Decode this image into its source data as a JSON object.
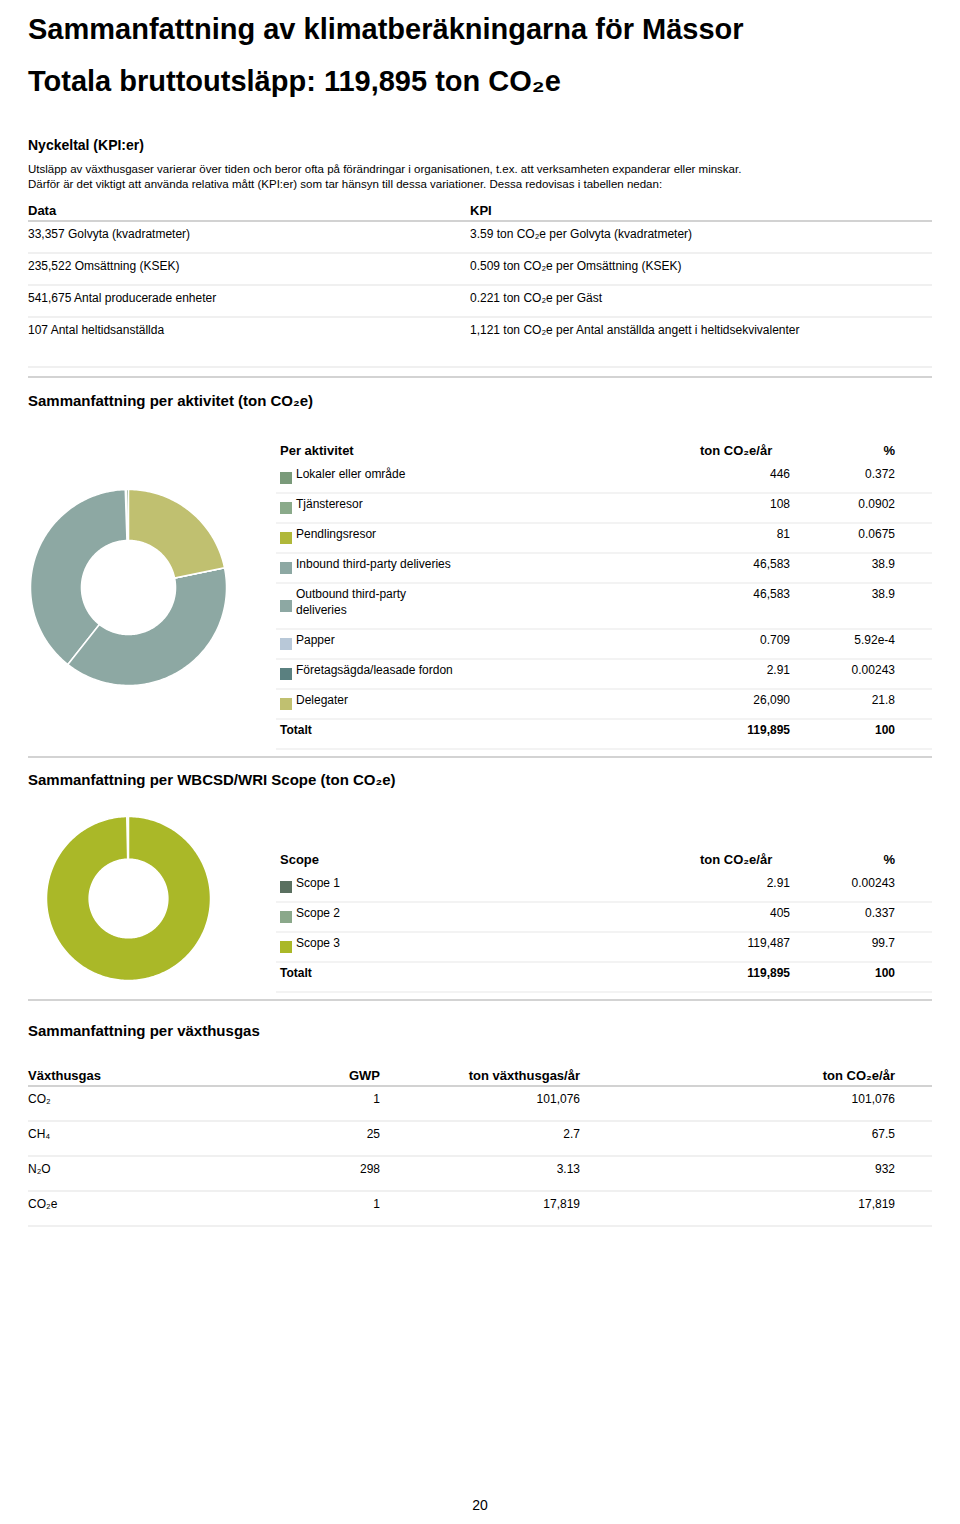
{
  "title": "Sammanfattning av klimatberäkningarna för Mässor",
  "subtitle": "Totala bruttoutsläpp: 119,895 ton CO₂e",
  "page_number": "20",
  "kpi_table": {
    "title": "Nyckeltal (KPI:er)",
    "text": [
      "Utsläpp av växthusgaser varierar över tiden och beror ofta på förändringar i organisationen, t.ex. att verksamheten expanderar eller minskar.",
      "Därför är det viktigt att använda relativa mått (KPI:er) som tar hänsyn till dessa variationer. Dessa redovisas i tabellen nedan:"
    ],
    "columns": [
      "Data",
      "KPI"
    ],
    "rows": [
      [
        "33,357 Golvyta (kvadratmeter)",
        "3.59 ton CO₂e per Golvyta (kvadratmeter)"
      ],
      [
        "235,522 Omsättning (KSEK)",
        "0.509 ton CO₂e per Omsättning (KSEK)"
      ],
      [
        "541,675 Antal producerade enheter",
        "0.221 ton CO₂e per Gäst"
      ],
      [
        "107 Antal heltidsanställda",
        "1,121 ton CO₂e per Antal anställda angett i heltidsekvivalenter"
      ]
    ]
  },
  "chart_data": [
    {
      "type": "pie",
      "title": "Sammanfattning per aktivitet (ton CO₂e)",
      "columns": [
        "Per aktivitet",
        "ton CO₂e/år",
        "%"
      ],
      "categories": [
        "Lokaler eller område",
        "Tjänsteresor",
        "Pendlingsresor",
        "Inbound third-party deliveries",
        "Outbound third-party\ndeliveries",
        "Papper",
        "Företagsägda/leasade fordon",
        "Delegater"
      ],
      "values": [
        446,
        108,
        81,
        46583,
        46583,
        0.709,
        2.91,
        26090
      ],
      "value_labels": [
        "446",
        "108",
        "81",
        "46,583",
        "46,583",
        "0.709",
        "2.91",
        "26,090"
      ],
      "share_labels": [
        "0.372",
        "0.0902",
        "0.0675",
        "38.9",
        "38.9",
        "5.92e-4",
        "0.00243",
        "21.8"
      ],
      "colors": [
        "#7a9a7a",
        "#8aaa8a",
        "#b0b83a",
        "#8da8a3",
        "#8da8a3",
        "#b8c8d8",
        "#5a8080",
        "#c0c070"
      ],
      "total": {
        "label": "Totalt",
        "value_label": "119,895",
        "share_label": "100"
      }
    },
    {
      "type": "pie",
      "title": "Sammanfattning per WBCSD/WRI Scope (ton CO₂e)",
      "columns": [
        "Scope",
        "ton CO₂e/år",
        "%"
      ],
      "categories": [
        "Scope 1",
        "Scope 2",
        "Scope 3"
      ],
      "values": [
        2.91,
        405,
        119487
      ],
      "value_labels": [
        "2.91",
        "405",
        "119,487"
      ],
      "share_labels": [
        "0.00243",
        "0.337",
        "99.7"
      ],
      "colors": [
        "#5a7060",
        "#8aa88a",
        "#aab828"
      ],
      "total": {
        "label": "Totalt",
        "value_label": "119,895",
        "share_label": "100"
      }
    }
  ],
  "gas_table": {
    "title": "Sammanfattning per växthusgas",
    "columns": [
      "Växthusgas",
      "GWP",
      "ton växthusgas/år",
      "ton CO₂e/år"
    ],
    "rows": [
      [
        "CO₂",
        "1",
        "101,076",
        "101,076"
      ],
      [
        "CH₄",
        "25",
        "2.7",
        "67.5"
      ],
      [
        "N₂O",
        "298",
        "3.13",
        "932"
      ],
      [
        "CO₂e",
        "1",
        "17,819",
        "17,819"
      ]
    ]
  }
}
